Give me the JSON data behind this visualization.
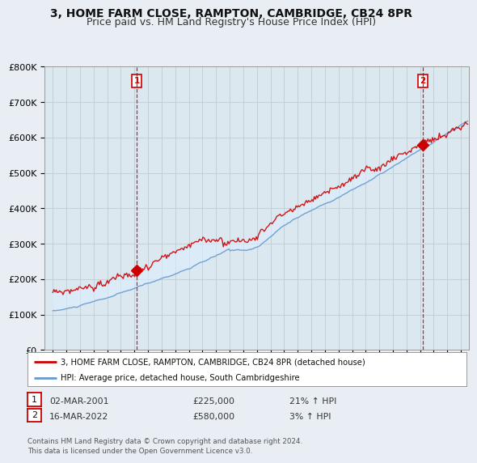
{
  "title": "3, HOME FARM CLOSE, RAMPTON, CAMBRIDGE, CB24 8PR",
  "subtitle": "Price paid vs. HM Land Registry's House Price Index (HPI)",
  "ylim": [
    0,
    800000
  ],
  "yticks": [
    0,
    100000,
    200000,
    300000,
    400000,
    500000,
    600000,
    700000,
    800000
  ],
  "ytick_labels": [
    "£0",
    "£100K",
    "£200K",
    "£300K",
    "£400K",
    "£500K",
    "£600K",
    "£700K",
    "£800K"
  ],
  "sale1_year": 2001.17,
  "sale1_price": 225000,
  "sale1_date": "02-MAR-2001",
  "sale1_pct": "21%",
  "sale2_year": 2022.2,
  "sale2_price": 580000,
  "sale2_date": "16-MAR-2022",
  "sale2_pct": "3%",
  "legend_red": "3, HOME FARM CLOSE, RAMPTON, CAMBRIDGE, CB24 8PR (detached house)",
  "legend_blue": "HPI: Average price, detached house, South Cambridgeshire",
  "footer": "Contains HM Land Registry data © Crown copyright and database right 2024.\nThis data is licensed under the Open Government Licence v3.0.",
  "red_color": "#cc0000",
  "blue_color": "#6699cc",
  "fill_color": "#ddeeff",
  "vline_color": "#cc0000",
  "bg_color": "#e8eef4",
  "plot_bg": "#dce8f0",
  "grid_color": "#c0ccd4",
  "title_fontsize": 10,
  "subtitle_fontsize": 9,
  "tick_fontsize": 8
}
